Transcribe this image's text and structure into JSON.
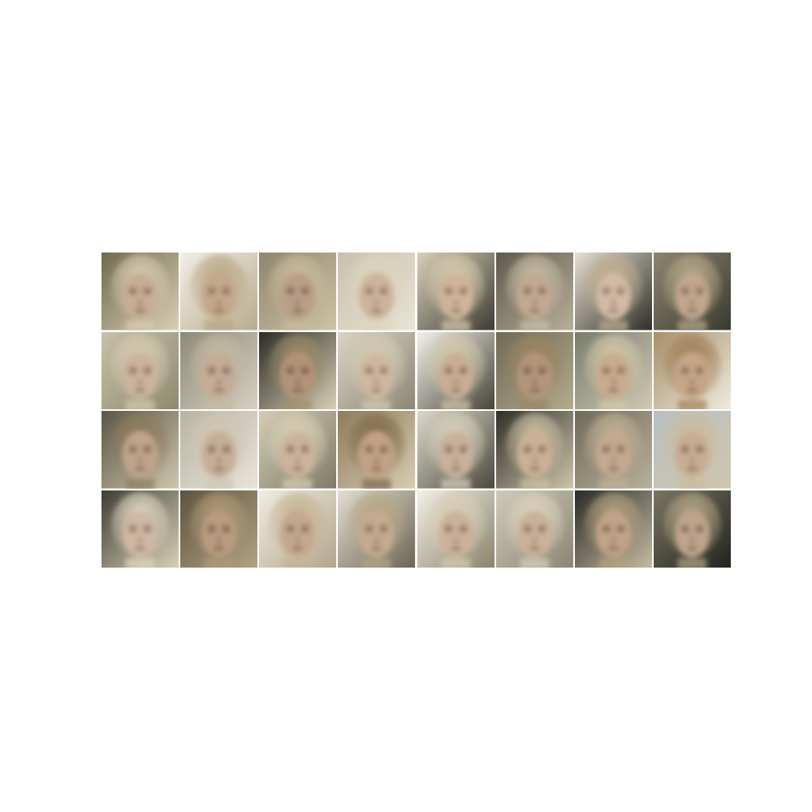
{
  "grid": {
    "rows": 4,
    "cols": 8,
    "tiles": [
      {
        "bg": [
          "#6f6a52",
          "#d9cfb4"
        ],
        "hair": "#d8ccb0",
        "skin": "#c8ad94",
        "dark": "#3a3428"
      },
      {
        "bg": [
          "#f2eee6",
          "#b9ab8e"
        ],
        "hair": "#b8a583",
        "skin": "#c4a78b",
        "dark": "#4a3f30"
      },
      {
        "bg": [
          "#8f8570",
          "#cfc3a5"
        ],
        "hair": "#c9bb9b",
        "skin": "#b99f86",
        "dark": "#3d362b"
      },
      {
        "bg": [
          "#c9c1ad",
          "#e9e3d3"
        ],
        "hair": "#ddd3be",
        "skin": "#cdb39b",
        "dark": "#4b4336"
      },
      {
        "bg": [
          "#d8cfb8",
          "#3f3c32"
        ],
        "hair": "#d7cbb0",
        "skin": "#cfb49a",
        "dark": "#453c30"
      },
      {
        "bg": [
          "#5e5a4c",
          "#b8ae98"
        ],
        "hair": "#cbbfa6",
        "skin": "#c3a992",
        "dark": "#3e372d"
      },
      {
        "bg": [
          "#e6e0d2",
          "#2f2e28"
        ],
        "hair": "#bfae8e",
        "skin": "#d3baa4",
        "dark": "#403a30"
      },
      {
        "bg": [
          "#8c8570",
          "#3a3a30"
        ],
        "hair": "#b9aa8b",
        "skin": "#c2a68d",
        "dark": "#3f382d"
      },
      {
        "bg": [
          "#c7c0aa",
          "#8d8a6e"
        ],
        "hair": "#d6cbb1",
        "skin": "#ccb39b",
        "dark": "#433b2f"
      },
      {
        "bg": [
          "#8e8a78",
          "#d6d0c0"
        ],
        "hair": "#c4b9a2",
        "skin": "#c5ac95",
        "dark": "#3c362c"
      },
      {
        "bg": [
          "#2c2b25",
          "#d8d0b6"
        ],
        "hair": "#9f8d68",
        "skin": "#b39378",
        "dark": "#362f25"
      },
      {
        "bg": [
          "#d9d4c6",
          "#8c8772"
        ],
        "hair": "#d4cab3",
        "skin": "#cfb7a1",
        "dark": "#463e32"
      },
      {
        "bg": [
          "#f3f1ea",
          "#474338"
        ],
        "hair": "#d3c7ab",
        "skin": "#c9ae95",
        "dark": "#3e362b"
      },
      {
        "bg": [
          "#6f6a55",
          "#b5aa8c"
        ],
        "hair": "#9a8563",
        "skin": "#b4957a",
        "dark": "#372f25"
      },
      {
        "bg": [
          "#7a7d6c",
          "#cfc8b4"
        ],
        "hair": "#d4c8aa",
        "skin": "#c9ab8e",
        "dark": "#41392d"
      },
      {
        "bg": [
          "#a68f6a",
          "#f0ebde"
        ],
        "hair": "#9f7f55",
        "skin": "#c6a587",
        "dark": "#3b3227"
      },
      {
        "bg": [
          "#5b5646",
          "#cfc6ac"
        ],
        "hair": "#8f7c5e",
        "skin": "#c0a48b",
        "dark": "#372f26"
      },
      {
        "bg": [
          "#b9b3a2",
          "#e8e4d9"
        ],
        "hair": "#cfc6b2",
        "skin": "#c7ae97",
        "dark": "#433b30"
      },
      {
        "bg": [
          "#d4ccb4",
          "#7f7b66"
        ],
        "hair": "#d8ceb5",
        "skin": "#cdb39b",
        "dark": "#40382d"
      },
      {
        "bg": [
          "#8e7c5c",
          "#d8ccb1"
        ],
        "hair": "#7e6a4c",
        "skin": "#c3a285",
        "dark": "#342c22"
      },
      {
        "bg": [
          "#dcd8cb",
          "#4b483c"
        ],
        "hair": "#d9d0bb",
        "skin": "#cab19b",
        "dark": "#413a2f"
      },
      {
        "bg": [
          "#2f2f2a",
          "#cdc4a9"
        ],
        "hair": "#cfc2a3",
        "skin": "#cbb096",
        "dark": "#3f372b"
      },
      {
        "bg": [
          "#6e6a5a",
          "#b9b09a"
        ],
        "hair": "#c1b296",
        "skin": "#c5a990",
        "dark": "#3b342a"
      },
      {
        "bg": [
          "#b9c0c2",
          "#cfc6ad"
        ],
        "hair": "#c9bb9c",
        "skin": "#c9ad93",
        "dark": "#3e372c"
      },
      {
        "bg": [
          "#3f3e34",
          "#d8d0b6"
        ],
        "hair": "#e2dac6",
        "skin": "#d0b8a3",
        "dark": "#413a30"
      },
      {
        "bg": [
          "#5d5440",
          "#b3a283"
        ],
        "hair": "#b09b78",
        "skin": "#b99b80",
        "dark": "#352d23"
      },
      {
        "bg": [
          "#f0ece2",
          "#b3a58b"
        ],
        "hair": "#c5b394",
        "skin": "#c5a88e",
        "dark": "#3f372c"
      },
      {
        "bg": [
          "#e2ded3",
          "#6c6552"
        ],
        "hair": "#b7a582",
        "skin": "#c6aa90",
        "dark": "#3c342a"
      },
      {
        "bg": [
          "#f2efe7",
          "#8a826a"
        ],
        "hair": "#d7cdb5",
        "skin": "#ccb29a",
        "dark": "#423a2f"
      },
      {
        "bg": [
          "#cfc9b8",
          "#8b8674"
        ],
        "hair": "#dcd2bd",
        "skin": "#cbb19a",
        "dark": "#453d31"
      },
      {
        "bg": [
          "#2a2b28",
          "#c5bba0"
        ],
        "hair": "#b5a27f",
        "skin": "#c1a389",
        "dark": "#3a3228"
      },
      {
        "bg": [
          "#787461",
          "#23241f"
        ],
        "hair": "#b7a888",
        "skin": "#bfa48c",
        "dark": "#3b342a"
      }
    ]
  }
}
